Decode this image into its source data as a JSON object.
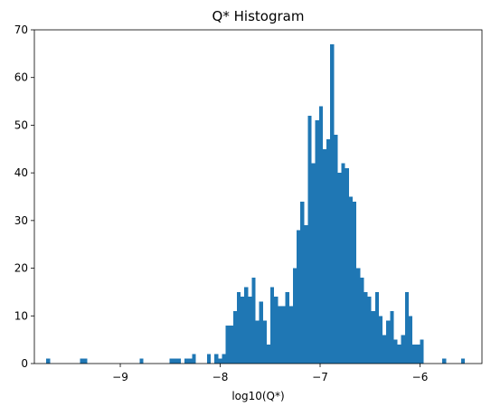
{
  "chart_data": {
    "type": "bar",
    "title": "Q* Histogram",
    "xlabel": "log10(Q*)",
    "ylabel": "",
    "xlim": [
      -9.86,
      -5.38
    ],
    "ylim": [
      0,
      70
    ],
    "xticks": [
      -9,
      -8,
      -7,
      -6
    ],
    "xtick_labels": [
      "−9",
      "−8",
      "−7",
      "−6"
    ],
    "yticks": [
      0,
      10,
      20,
      30,
      40,
      50,
      60,
      70
    ],
    "ytick_labels": [
      "0",
      "10",
      "20",
      "30",
      "40",
      "50",
      "60",
      "70"
    ],
    "grid": false,
    "legend": "none",
    "bar_color": "#1f77b4",
    "bin_start": -9.7402,
    "bin_width": 0.03739,
    "counts": [
      1,
      0,
      0,
      0,
      0,
      0,
      0,
      0,
      0,
      1,
      1,
      0,
      0,
      0,
      0,
      0,
      0,
      0,
      0,
      0,
      0,
      0,
      0,
      0,
      0,
      1,
      0,
      0,
      0,
      0,
      0,
      0,
      0,
      1,
      1,
      1,
      0,
      1,
      1,
      2,
      0,
      0,
      0,
      2,
      0,
      2,
      1,
      2,
      8,
      8,
      11,
      15,
      14,
      16,
      14,
      18,
      9,
      13,
      9,
      4,
      16,
      14,
      12,
      12,
      15,
      12,
      20,
      28,
      34,
      29,
      52,
      42,
      51,
      54,
      45,
      47,
      67,
      48,
      40,
      42,
      41,
      35,
      34,
      20,
      18,
      15,
      14,
      11,
      15,
      10,
      6,
      9,
      11,
      5,
      4,
      6,
      15,
      10,
      4,
      4,
      5,
      0,
      0,
      0,
      0,
      0,
      1,
      0,
      0,
      0,
      0,
      1
    ]
  }
}
